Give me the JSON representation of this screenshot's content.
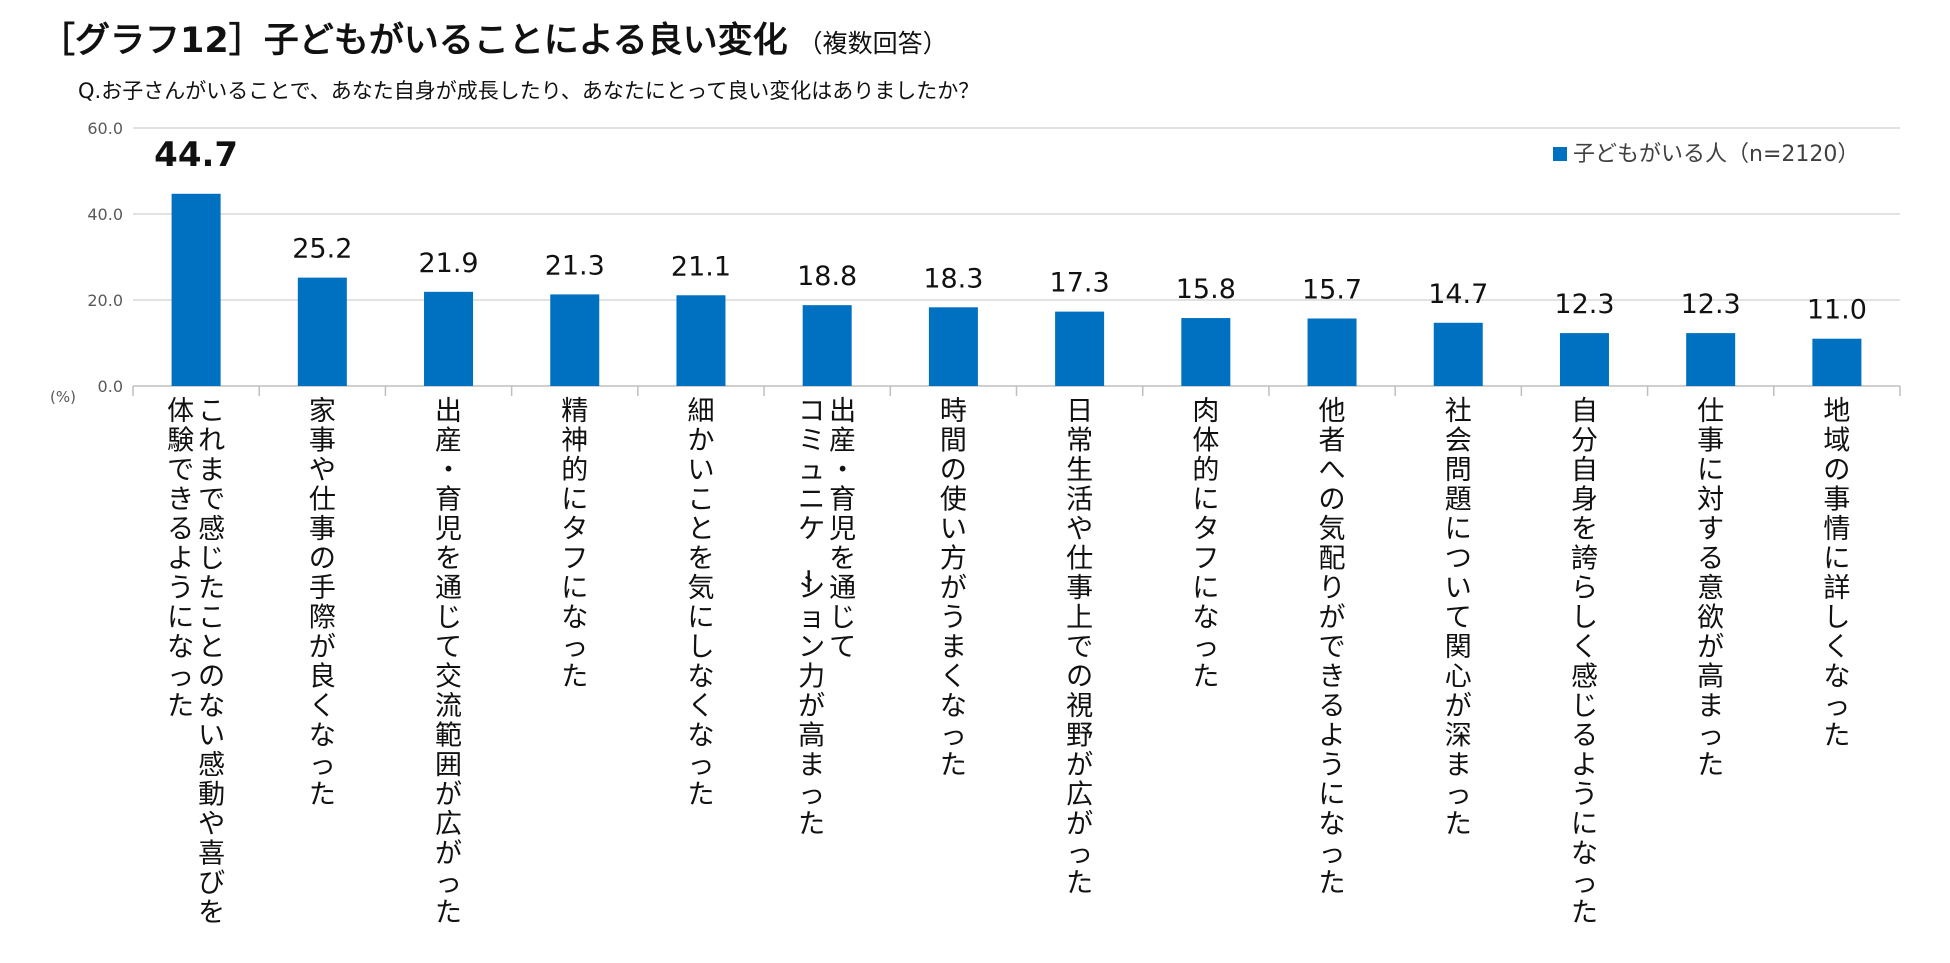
{
  "title": {
    "main": "［グラフ12］子どもがいることによる良い変化",
    "sub": "（複数回答）"
  },
  "question": "Q.お子さんがいることで、あなた自身が成長したり、あなたにとって良い変化はありましたか？",
  "colors": {
    "bar": "#0070C0",
    "grid": "#D9D9D9",
    "text": "#111111",
    "axis_text": "#595959"
  },
  "chart_data": {
    "type": "bar",
    "title": "［グラフ12］子どもがいることによる良い変化（複数回答）",
    "xlabel": "",
    "ylabel": "(%)",
    "ylim": [
      0,
      60
    ],
    "yticks": [
      "0.0",
      "20.0",
      "40.0",
      "60.0"
    ],
    "legend": {
      "label": "子どもがいる人（n=2120）",
      "position": "top-right"
    },
    "categories": [
      "これまで感じたことのない感動や喜びを体験できるようになった",
      "家事や仕事の手際が良くなった",
      "出産・育児を通じて交流範囲が広がった",
      "精神的にタフになった",
      "細かいことを気にしなくなった",
      "出産・育児を通じてコミュニケーション力が高まった",
      "時間の使い方がうまくなった",
      "日常生活や仕事上での視野が広がった",
      "肉体的にタフになった",
      "他者への気配りができるようになった",
      "社会問題について関心が深まった",
      "自分自身を誇らしく感じるようになった",
      "仕事に対する意欲が高まった",
      "地域の事情に詳しくなった"
    ],
    "category_lines": [
      [
        "これまで感じたことのない感動や喜びを",
        "体験できるようになった"
      ],
      [
        "家事や仕事の手際が良くなった"
      ],
      [
        "出産・育児を通じて交流範囲が広がった"
      ],
      [
        "精神的にタフになった"
      ],
      [
        "細かいことを気にしなくなった"
      ],
      [
        "出産・育児を通じて",
        "コミュニケーション力が高まった"
      ],
      [
        "時間の使い方がうまくなった"
      ],
      [
        "日常生活や仕事上での視野が広がった"
      ],
      [
        "肉体的にタフになった"
      ],
      [
        "他者への気配りができるようになった"
      ],
      [
        "社会問題について関心が深まった"
      ],
      [
        "自分自身を誇らしく感じるようになった"
      ],
      [
        "仕事に対する意欲が高まった"
      ],
      [
        "地域の事情に詳しくなった"
      ]
    ],
    "values": [
      44.7,
      25.2,
      21.9,
      21.3,
      21.1,
      18.8,
      18.3,
      17.3,
      15.8,
      15.7,
      14.7,
      12.3,
      12.3,
      11.0
    ],
    "value_labels": [
      "44.7",
      "25.2",
      "21.9",
      "21.3",
      "21.1",
      "18.8",
      "18.3",
      "17.3",
      "15.8",
      "15.7",
      "14.7",
      "12.3",
      "12.3",
      "11.0"
    ]
  }
}
